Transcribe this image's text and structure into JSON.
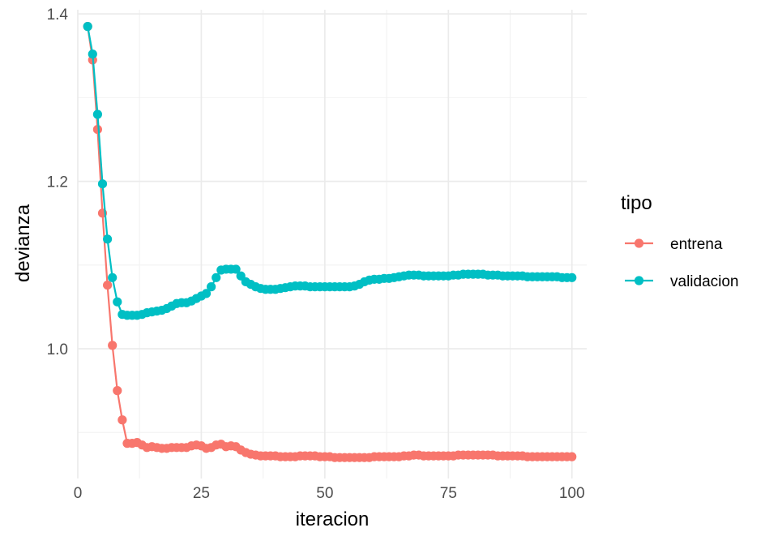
{
  "chart_data": {
    "type": "line",
    "xlabel": "iteracion",
    "ylabel": "devianza",
    "xlim": [
      0,
      103
    ],
    "ylim": [
      0.845,
      1.405
    ],
    "x_ticks": [
      0,
      25,
      50,
      75,
      100
    ],
    "x_tick_labels": [
      "0",
      "25",
      "50",
      "75",
      "100"
    ],
    "y_ticks": [
      1.0,
      1.2,
      1.4
    ],
    "y_tick_labels": [
      "1.0",
      "1.2",
      "1.4"
    ],
    "grid": true,
    "legend": {
      "title": "tipo",
      "position": "right"
    },
    "x": [
      2,
      3,
      4,
      5,
      6,
      7,
      8,
      9,
      10,
      11,
      12,
      13,
      14,
      15,
      16,
      17,
      18,
      19,
      20,
      21,
      22,
      23,
      24,
      25,
      26,
      27,
      28,
      29,
      30,
      31,
      32,
      33,
      34,
      35,
      36,
      37,
      38,
      39,
      40,
      41,
      42,
      43,
      44,
      45,
      46,
      47,
      48,
      49,
      50,
      51,
      52,
      53,
      54,
      55,
      56,
      57,
      58,
      59,
      60,
      61,
      62,
      63,
      64,
      65,
      66,
      67,
      68,
      69,
      70,
      71,
      72,
      73,
      74,
      75,
      76,
      77,
      78,
      79,
      80,
      81,
      82,
      83,
      84,
      85,
      86,
      87,
      88,
      89,
      90,
      91,
      92,
      93,
      94,
      95,
      96,
      97,
      98,
      99,
      100
    ],
    "series": [
      {
        "name": "entrena",
        "color": "#f8766d",
        "values": [
          1.385,
          1.345,
          1.262,
          1.162,
          1.076,
          1.004,
          0.95,
          0.915,
          0.887,
          0.887,
          0.888,
          0.885,
          0.882,
          0.883,
          0.882,
          0.881,
          0.881,
          0.882,
          0.882,
          0.882,
          0.882,
          0.884,
          0.885,
          0.884,
          0.881,
          0.882,
          0.885,
          0.886,
          0.883,
          0.884,
          0.883,
          0.879,
          0.876,
          0.874,
          0.873,
          0.872,
          0.872,
          0.872,
          0.872,
          0.871,
          0.871,
          0.871,
          0.871,
          0.872,
          0.872,
          0.872,
          0.872,
          0.871,
          0.871,
          0.871,
          0.87,
          0.87,
          0.87,
          0.87,
          0.87,
          0.87,
          0.87,
          0.87,
          0.871,
          0.871,
          0.871,
          0.871,
          0.871,
          0.871,
          0.872,
          0.872,
          0.873,
          0.873,
          0.872,
          0.872,
          0.872,
          0.872,
          0.872,
          0.872,
          0.872,
          0.873,
          0.873,
          0.873,
          0.873,
          0.873,
          0.873,
          0.873,
          0.873,
          0.872,
          0.872,
          0.872,
          0.872,
          0.872,
          0.872,
          0.871,
          0.871,
          0.871,
          0.871,
          0.871,
          0.871,
          0.871,
          0.871,
          0.871,
          0.871
        ]
      },
      {
        "name": "validacion",
        "color": "#00bfc4",
        "values": [
          1.385,
          1.352,
          1.28,
          1.197,
          1.131,
          1.085,
          1.056,
          1.041,
          1.04,
          1.04,
          1.04,
          1.041,
          1.043,
          1.044,
          1.045,
          1.046,
          1.048,
          1.051,
          1.054,
          1.055,
          1.055,
          1.057,
          1.06,
          1.063,
          1.066,
          1.074,
          1.085,
          1.094,
          1.095,
          1.095,
          1.095,
          1.087,
          1.08,
          1.077,
          1.074,
          1.072,
          1.071,
          1.071,
          1.071,
          1.072,
          1.073,
          1.074,
          1.075,
          1.075,
          1.075,
          1.074,
          1.074,
          1.074,
          1.074,
          1.074,
          1.074,
          1.074,
          1.074,
          1.074,
          1.075,
          1.077,
          1.08,
          1.082,
          1.083,
          1.083,
          1.084,
          1.084,
          1.085,
          1.086,
          1.087,
          1.088,
          1.088,
          1.088,
          1.087,
          1.087,
          1.087,
          1.087,
          1.087,
          1.087,
          1.088,
          1.088,
          1.089,
          1.089,
          1.089,
          1.089,
          1.089,
          1.088,
          1.088,
          1.088,
          1.087,
          1.087,
          1.087,
          1.087,
          1.087,
          1.086,
          1.086,
          1.086,
          1.086,
          1.086,
          1.086,
          1.086,
          1.085,
          1.085,
          1.085
        ]
      }
    ]
  }
}
